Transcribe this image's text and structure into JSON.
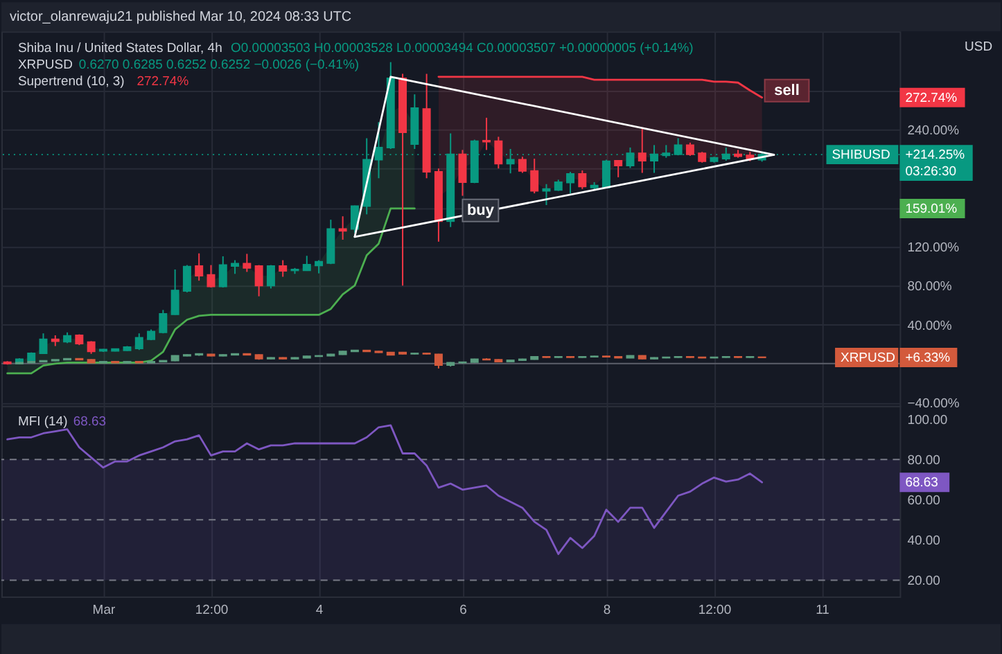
{
  "chart_data": [
    {
      "type": "candlestick",
      "title": "Shiba Inu / United States Dollar, 4h",
      "annotations": [
        "victor_olanrewaju21 published Mar 10, 2024 08:33 UTC",
        "O0.00003503 H0.00003528 L0.00003494 C0.00003507 +0.00000005 (+0.14%)",
        "0.6270 0.6285 0.6252 0.6252 −0.0026 (−0.41%)",
        "Supertrend (10, 3)",
        "272.74%",
        "USD",
        "272.74%",
        "+214.25%",
        "03:26:30",
        "159.01%",
        "+6.33%",
        {
          "text": "buy",
          "x": "2024-03-06T06:00",
          "y": 157
        },
        "sell"
      ],
      "x": [
        "2024-02-28T16:00",
        "2024-02-28T20:00",
        "2024-02-29T00:00",
        "2024-02-29T04:00",
        "2024-02-29T08:00",
        "2024-02-29T12:00",
        "2024-02-29T16:00",
        "2024-02-29T20:00",
        "2024-03-01T00:00",
        "2024-03-01T04:00",
        "2024-03-01T08:00",
        "2024-03-01T12:00",
        "2024-03-01T16:00",
        "2024-03-01T20:00",
        "2024-03-02T00:00",
        "2024-03-02T04:00",
        "2024-03-02T08:00",
        "2024-03-02T12:00",
        "2024-03-02T16:00",
        "2024-03-02T20:00",
        "2024-03-03T00:00",
        "2024-03-03T04:00",
        "2024-03-03T08:00",
        "2024-03-03T12:00",
        "2024-03-03T16:00",
        "2024-03-03T20:00",
        "2024-03-04T00:00",
        "2024-03-04T04:00",
        "2024-03-04T08:00",
        "2024-03-04T12:00",
        "2024-03-04T16:00",
        "2024-03-04T20:00",
        "2024-03-05T00:00",
        "2024-03-05T04:00",
        "2024-03-05T08:00",
        "2024-03-05T12:00",
        "2024-03-05T16:00",
        "2024-03-05T20:00",
        "2024-03-06T00:00",
        "2024-03-06T04:00",
        "2024-03-06T08:00",
        "2024-03-06T12:00",
        "2024-03-06T16:00",
        "2024-03-06T20:00",
        "2024-03-07T00:00",
        "2024-03-07T04:00",
        "2024-03-07T08:00",
        "2024-03-07T12:00",
        "2024-03-07T16:00",
        "2024-03-07T20:00",
        "2024-03-08T00:00",
        "2024-03-08T04:00",
        "2024-03-08T08:00",
        "2024-03-08T12:00",
        "2024-03-08T16:00",
        "2024-03-08T20:00",
        "2024-03-09T00:00",
        "2024-03-09T04:00",
        "2024-03-09T08:00",
        "2024-03-09T12:00",
        "2024-03-09T16:00",
        "2024-03-09T20:00",
        "2024-03-10T00:00",
        "2024-03-10T04:00"
      ],
      "series": [
        {
          "name": "SHIBUSD",
          "type": "candlestick",
          "ohlc": [
            [
              1.5,
              2.5,
              -1,
              0
            ],
            [
              0.5,
              5.5,
              0,
              4.5
            ],
            [
              3.5,
              11.5,
              3,
              10.5
            ],
            [
              10.5,
              31,
              10,
              25
            ],
            [
              25,
              29,
              18,
              23
            ],
            [
              22.5,
              32,
              21,
              28.5
            ],
            [
              29,
              30,
              19,
              20.5
            ],
            [
              22,
              23,
              10,
              12.5
            ],
            [
              13,
              15,
              12,
              14.5
            ],
            [
              13,
              15.5,
              12.5,
              15
            ],
            [
              13.5,
              18,
              13,
              17
            ],
            [
              15.5,
              31,
              14,
              26.5
            ],
            [
              25,
              35,
              24,
              33
            ],
            [
              32,
              55,
              31,
              51
            ],
            [
              50.5,
              96.5,
              50,
              75
            ],
            [
              74.5,
              101,
              73,
              99.5
            ],
            [
              100,
              113,
              85,
              90
            ],
            [
              91,
              101,
              78,
              79
            ],
            [
              79,
              110,
              78,
              101
            ],
            [
              100,
              106,
              92,
              102.5
            ],
            [
              102.5,
              112.5,
              94,
              98
            ],
            [
              100,
              101,
              69,
              80
            ],
            [
              80,
              101,
              77,
              100
            ],
            [
              100,
              106,
              89,
              95
            ],
            [
              95.5,
              98,
              92,
              96.5
            ],
            [
              95.5,
              110.5,
              95,
              101.5
            ],
            [
              100.5,
              106,
              92.5,
              104.5
            ],
            [
              103,
              147.5,
              102,
              138
            ],
            [
              138,
              151,
              127,
              136
            ],
            [
              138,
              162,
              134,
              161.5
            ],
            [
              161.5,
              231,
              153,
              209
            ],
            [
              209,
              247.5,
              190,
              221.5
            ],
            [
              221.5,
              309,
              220,
              292.5
            ],
            [
              292.5,
              297,
              80,
              237
            ],
            [
              225,
              276,
              220,
              262
            ],
            [
              261,
              297,
              190,
              196.5
            ],
            [
              196.5,
              200,
              125,
              146
            ],
            [
              146,
              236,
              140,
              214.5
            ],
            [
              214.5,
              219,
              172,
              186
            ],
            [
              186,
              229.5,
              185,
              228
            ],
            [
              228.5,
              252,
              219,
              227.5
            ],
            [
              228,
              232.5,
              200,
              205
            ],
            [
              205,
              220,
              195,
              209
            ],
            [
              209,
              212,
              195.5,
              197.5
            ],
            [
              197.5,
              210,
              174.5,
              177
            ],
            [
              177,
              184,
              162.5,
              179
            ],
            [
              178,
              188.5,
              177,
              186
            ],
            [
              185.5,
              196.5,
              174.5,
              194.5
            ],
            [
              194.5,
              198,
              179,
              181.5
            ],
            [
              180.5,
              186,
              178,
              182.5
            ],
            [
              180.5,
              209,
              180,
              207.5
            ],
            [
              208,
              208.5,
              191,
              203
            ],
            [
              203,
              221.5,
              200.5,
              215.5
            ],
            [
              215.5,
              240.5,
              195.5,
              208
            ],
            [
              208,
              224,
              195.5,
              214.5
            ],
            [
              213.5,
              224,
              211,
              215.5
            ],
            [
              214.5,
              231,
              213.5,
              224
            ],
            [
              224,
              226.5,
              213,
              214.5
            ],
            [
              215.5,
              217,
              206,
              207.5
            ],
            [
              207.5,
              212,
              206,
              211
            ],
            [
              210,
              221.5,
              208,
              214.5
            ],
            [
              214.5,
              219,
              211,
              212.5
            ],
            [
              213.5,
              217,
              207.5,
              210
            ],
            [
              209,
              216,
              207,
              214.25
            ]
          ],
          "colors": [
            "#f23645",
            "#089981",
            "#089981",
            "#089981",
            "#f23645",
            "#089981",
            "#f23645",
            "#f23645",
            "#089981",
            "#089981",
            "#089981",
            "#089981",
            "#089981",
            "#089981",
            "#089981",
            "#089981",
            "#f23645",
            "#f23645",
            "#089981",
            "#089981",
            "#f23645",
            "#f23645",
            "#089981",
            "#f23645",
            "#089981",
            "#089981",
            "#089981",
            "#089981",
            "#f23645",
            "#089981",
            "#089981",
            "#089981",
            "#089981",
            "#f23645",
            "#089981",
            "#f23645",
            "#f23645",
            "#089981",
            "#f23645",
            "#089981",
            "#f23645",
            "#f23645",
            "#089981",
            "#f23645",
            "#f23645",
            "#089981",
            "#089981",
            "#089981",
            "#f23645",
            "#089981",
            "#089981",
            "#f23645",
            "#089981",
            "#f23645",
            "#089981",
            "#089981",
            "#089981",
            "#f23645",
            "#f23645",
            "#089981",
            "#089981",
            "#f23645",
            "#f23645",
            "#089981"
          ]
        },
        {
          "name": "XRPUSD",
          "type": "candlestick",
          "ohlc": [
            null,
            [
              0,
              1.5,
              -0.5,
              1
            ],
            [
              1,
              2.5,
              0.5,
              2
            ],
            [
              2,
              3,
              1.5,
              3
            ],
            [
              3,
              4,
              2.5,
              4
            ],
            [
              4,
              5,
              3.5,
              5
            ],
            [
              5,
              5.5,
              3.5,
              4
            ],
            [
              4,
              4.5,
              0.5,
              1
            ],
            [
              1,
              2,
              0.5,
              2
            ],
            [
              2,
              2.5,
              0.5,
              1
            ],
            [
              1,
              2.5,
              0.5,
              2
            ],
            [
              2,
              2.5,
              1,
              1
            ],
            [
              1,
              2.5,
              0.5,
              2
            ],
            [
              2,
              3.5,
              1.5,
              3
            ],
            [
              3,
              8.5,
              2.5,
              8
            ],
            [
              8,
              9.5,
              7.5,
              9
            ],
            [
              9,
              10,
              8,
              10
            ],
            [
              9.5,
              10,
              7.5,
              8
            ],
            [
              8,
              9.5,
              7.5,
              9
            ],
            [
              9,
              10,
              8.5,
              10
            ],
            [
              10,
              10.5,
              8.5,
              9
            ],
            [
              9,
              9.5,
              4,
              5
            ],
            [
              5,
              6.5,
              4.5,
              6
            ],
            [
              6,
              6.5,
              4.5,
              5
            ],
            [
              5,
              6.5,
              4.5,
              6
            ],
            [
              6,
              8,
              5.5,
              7.5
            ],
            [
              7.5,
              8.5,
              7,
              8
            ],
            [
              8,
              10,
              7.5,
              9.5
            ],
            [
              9.5,
              13,
              9,
              12.5
            ],
            [
              12.5,
              14,
              12,
              13.5
            ],
            [
              13.5,
              14,
              12,
              12.5
            ],
            [
              12.5,
              13,
              11,
              11.5
            ],
            [
              11.5,
              12,
              8.5,
              9
            ],
            [
              11.5,
              12,
              9.5,
              10
            ],
            [
              10,
              11,
              9.5,
              10.5
            ],
            [
              10.5,
              11,
              9.5,
              10
            ],
            [
              9.5,
              10,
              -5,
              -1.5
            ],
            [
              -1.5,
              1.5,
              -3,
              1
            ],
            [
              1,
              2,
              0,
              1.5
            ],
            [
              1.5,
              5,
              1,
              4.5
            ],
            [
              4.5,
              5.5,
              3.5,
              4
            ],
            [
              4,
              4.5,
              1.5,
              2
            ],
            [
              2,
              4,
              1.5,
              3.5
            ],
            [
              3.5,
              5,
              3,
              4.5
            ],
            [
              4.5,
              7.5,
              4,
              7
            ],
            [
              7,
              7.5,
              6,
              6.5
            ],
            [
              6.5,
              7.5,
              6,
              7
            ],
            [
              7,
              7.5,
              6,
              6.5
            ],
            [
              6.5,
              7.5,
              6,
              7
            ],
            [
              7,
              8,
              6.5,
              7.5
            ],
            [
              7.5,
              8,
              6.5,
              7
            ],
            [
              7,
              7.5,
              5.5,
              6
            ],
            [
              6,
              8.5,
              5.5,
              8
            ],
            [
              8,
              8.5,
              4.5,
              5
            ],
            [
              5,
              6.5,
              4.5,
              6
            ],
            [
              6,
              7,
              5.5,
              6.5
            ],
            [
              6.5,
              7.5,
              6,
              7
            ],
            [
              7,
              7.5,
              6,
              6.5
            ],
            [
              6.5,
              7,
              5.5,
              6
            ],
            [
              6,
              7,
              5.5,
              6.5
            ],
            [
              6.5,
              7.5,
              6,
              7
            ],
            [
              7,
              7.5,
              6,
              6.5
            ],
            [
              6.5,
              7.5,
              6,
              7
            ],
            [
              6.6,
              6.9,
              6.33,
              6.33
            ]
          ],
          "colors": [
            null,
            "#5b9c7f",
            "#5b9c7f",
            "#5b9c7f",
            "#5b9c7f",
            "#5b9c7f",
            "#d35a3c",
            "#d35a3c",
            "#5b9c7f",
            "#d35a3c",
            "#5b9c7f",
            "#d35a3c",
            "#5b9c7f",
            "#5b9c7f",
            "#5b9c7f",
            "#5b9c7f",
            "#5b9c7f",
            "#d35a3c",
            "#5b9c7f",
            "#5b9c7f",
            "#d35a3c",
            "#d35a3c",
            "#5b9c7f",
            "#d35a3c",
            "#5b9c7f",
            "#5b9c7f",
            "#5b9c7f",
            "#5b9c7f",
            "#5b9c7f",
            "#5b9c7f",
            "#d35a3c",
            "#d35a3c",
            "#d35a3c",
            "#d35a3c",
            "#5b9c7f",
            "#d35a3c",
            "#d35a3c",
            "#5b9c7f",
            "#5b9c7f",
            "#5b9c7f",
            "#d35a3c",
            "#d35a3c",
            "#5b9c7f",
            "#5b9c7f",
            "#5b9c7f",
            "#d35a3c",
            "#5b9c7f",
            "#d35a3c",
            "#5b9c7f",
            "#5b9c7f",
            "#d35a3c",
            "#d35a3c",
            "#5b9c7f",
            "#d35a3c",
            "#5b9c7f",
            "#5b9c7f",
            "#5b9c7f",
            "#d35a3c",
            "#d35a3c",
            "#5b9c7f",
            "#5b9c7f",
            "#d35a3c",
            "#5b9c7f",
            "#d35a3c"
          ]
        },
        {
          "type": "line",
          "color": "#4caf50",
          "values": [
            -10,
            -10,
            -10,
            -2,
            0,
            1,
            1,
            1,
            1,
            1,
            1,
            1,
            3,
            12,
            35,
            45,
            49,
            50,
            50,
            50,
            50,
            50,
            50,
            50,
            50,
            50,
            50,
            56,
            71,
            80,
            111,
            123,
            159.01,
            159.01,
            159.01,
            null,
            null,
            null,
            null,
            null,
            null,
            null,
            null,
            null,
            null,
            null,
            null,
            null,
            null,
            null,
            null,
            null,
            null,
            null,
            null,
            null,
            null,
            null,
            null,
            null,
            null,
            null,
            null,
            null
          ],
          "lower": [
            -10,
            -10,
            -10,
            -2,
            0,
            1,
            1,
            1,
            1,
            1,
            1,
            1,
            3,
            12,
            35,
            45,
            49,
            50,
            50,
            50,
            50,
            50,
            50,
            50,
            50,
            50,
            50,
            56,
            71,
            80,
            111,
            123,
            159.01,
            159.01,
            159.01,
            null,
            null,
            null,
            null,
            null,
            null,
            null,
            null,
            null,
            null,
            null,
            null,
            null,
            null,
            null,
            null,
            null,
            null,
            null,
            null,
            null,
            null,
            null,
            null,
            null,
            null,
            null,
            null,
            null
          ],
          "upper": [
            1,
            3,
            7,
            18,
            24,
            26,
            25,
            17,
            14,
            14,
            15,
            21,
            29,
            42,
            63,
            87,
            95,
            85,
            90,
            101,
            100,
            90,
            90,
            98,
            96,
            99,
            103,
            121,
            137,
            150,
            185,
            215,
            257,
            265,
            244,
            null,
            null,
            null,
            null,
            null,
            null,
            null,
            null,
            null,
            null,
            null,
            null,
            null,
            null,
            null,
            null,
            null,
            null,
            null,
            null,
            null,
            null,
            null,
            null,
            null,
            null,
            null,
            null,
            null
          ]
        },
        {
          "type": "line",
          "color": "#f23645",
          "values": [
            null,
            null,
            null,
            null,
            null,
            null,
            null,
            null,
            null,
            null,
            null,
            null,
            null,
            null,
            null,
            null,
            null,
            null,
            null,
            null,
            null,
            null,
            null,
            null,
            null,
            null,
            null,
            null,
            null,
            null,
            null,
            null,
            null,
            null,
            null,
            null,
            294,
            294,
            294,
            294,
            294,
            294,
            294,
            294,
            294,
            294,
            294,
            294,
            294,
            291,
            291,
            291,
            291,
            291,
            291,
            291,
            291,
            291,
            291,
            289,
            289,
            288,
            280,
            272.74
          ],
          "lower": [
            null,
            null,
            null,
            null,
            null,
            null,
            null,
            null,
            null,
            null,
            null,
            null,
            null,
            null,
            null,
            null,
            null,
            null,
            null,
            null,
            null,
            null,
            null,
            null,
            null,
            null,
            null,
            null,
            null,
            null,
            null,
            null,
            null,
            null,
            null,
            null,
            171,
            180,
            200,
            207,
            228,
            217,
            207,
            203,
            187,
            178,
            182,
            190,
            188,
            182,
            194,
            206,
            209,
            212,
            211,
            215,
            219,
            219,
            212,
            209,
            212,
            214,
            212,
            212
          ],
          "upper": [
            null,
            null,
            null,
            null,
            null,
            null,
            null,
            null,
            null,
            null,
            null,
            null,
            null,
            null,
            null,
            null,
            null,
            null,
            null,
            null,
            null,
            null,
            null,
            null,
            null,
            null,
            null,
            null,
            null,
            null,
            null,
            null,
            null,
            null,
            null,
            null,
            294,
            294,
            294,
            294,
            294,
            294,
            294,
            294,
            294,
            294,
            294,
            294,
            294,
            291,
            291,
            291,
            291,
            291,
            291,
            291,
            291,
            291,
            291,
            289,
            289,
            288,
            280,
            272.74
          ]
        },
        {
          "type": "line",
          "color": "#ffffff",
          "x": [
            "2024-03-04T12:00",
            "2024-03-05T00:00",
            "2024-03-10T08:00"
          ],
          "values": [
            130,
            294,
            214
          ]
        },
        {
          "type": "line",
          "color": "#ffffff",
          "x": [
            "2024-03-04T12:00",
            "2024-03-10T08:00"
          ],
          "values": [
            130,
            214
          ]
        }
      ],
      "xlim": [
        "2024-02-28T14:00",
        "2024-03-12T02:00"
      ],
      "xticks": [
        {
          "value": "2024-03-01T00:00",
          "label": null
        },
        {
          "value": "2024-03-02T12:00",
          "label": null
        },
        {
          "value": "2024-03-04T00:00",
          "label": null
        },
        {
          "value": "2024-03-06T00:00",
          "label": null
        },
        {
          "value": "2024-03-08T00:00",
          "label": null
        },
        {
          "value": "2024-03-09T12:00",
          "label": null
        },
        {
          "value": "2024-03-11T00:00",
          "label": null
        }
      ],
      "ylim": [
        -43.2,
        340.6
      ],
      "yticks": [
        {
          "value": -40,
          "label": "−40.00%"
        },
        {
          "value": 0,
          "label": null
        },
        {
          "value": 40,
          "label": "40.00%"
        },
        {
          "value": 80,
          "label": "80.00%"
        },
        {
          "value": 120,
          "label": "120.00%"
        },
        {
          "value": 160,
          "label": null
        },
        {
          "value": 200,
          "label": null
        },
        {
          "value": 240,
          "label": "240.00%"
        },
        {
          "value": 280,
          "label": null
        }
      ],
      "ref_lines": [
        {
          "axis": "y",
          "value": 214.25,
          "color": "#089981",
          "line_style": "dotted"
        },
        {
          "axis": "y",
          "value": 0,
          "color": "#5d606b"
        }
      ],
      "grid": true,
      "tick_labels": "y"
    },
    {
      "type": "line",
      "title": "MFI (14)",
      "annotations": [
        "68.63",
        "68.63"
      ],
      "x": [
        "2024-02-28T16:00",
        "2024-02-28T20:00",
        "2024-02-29T00:00",
        "2024-02-29T04:00",
        "2024-02-29T08:00",
        "2024-02-29T12:00",
        "2024-02-29T16:00",
        "2024-02-29T20:00",
        "2024-03-01T00:00",
        "2024-03-01T04:00",
        "2024-03-01T08:00",
        "2024-03-01T12:00",
        "2024-03-01T16:00",
        "2024-03-01T20:00",
        "2024-03-02T00:00",
        "2024-03-02T04:00",
        "2024-03-02T08:00",
        "2024-03-02T12:00",
        "2024-03-02T16:00",
        "2024-03-02T20:00",
        "2024-03-03T00:00",
        "2024-03-03T04:00",
        "2024-03-03T08:00",
        "2024-03-03T12:00",
        "2024-03-03T16:00",
        "2024-03-03T20:00",
        "2024-03-04T00:00",
        "2024-03-04T04:00",
        "2024-03-04T08:00",
        "2024-03-04T12:00",
        "2024-03-04T16:00",
        "2024-03-04T20:00",
        "2024-03-05T00:00",
        "2024-03-05T04:00",
        "2024-03-05T08:00",
        "2024-03-05T12:00",
        "2024-03-05T16:00",
        "2024-03-05T20:00",
        "2024-03-06T00:00",
        "2024-03-06T04:00",
        "2024-03-06T08:00",
        "2024-03-06T12:00",
        "2024-03-06T16:00",
        "2024-03-06T20:00",
        "2024-03-07T00:00",
        "2024-03-07T04:00",
        "2024-03-07T08:00",
        "2024-03-07T12:00",
        "2024-03-07T16:00",
        "2024-03-07T20:00",
        "2024-03-08T00:00",
        "2024-03-08T04:00",
        "2024-03-08T08:00",
        "2024-03-08T12:00",
        "2024-03-08T16:00",
        "2024-03-08T20:00",
        "2024-03-09T00:00",
        "2024-03-09T04:00",
        "2024-03-09T08:00",
        "2024-03-09T12:00",
        "2024-03-09T16:00",
        "2024-03-09T20:00",
        "2024-03-10T00:00",
        "2024-03-10T04:00"
      ],
      "series": [
        {
          "color": "#7e57c2",
          "values": [
            90,
            91,
            91,
            93,
            94,
            95,
            86,
            81,
            76,
            79,
            79,
            82,
            84,
            86,
            89,
            90,
            92,
            82,
            84,
            84,
            88,
            85,
            87,
            87,
            88,
            88,
            88,
            88,
            88,
            88,
            91,
            96,
            97,
            83,
            83,
            77,
            66,
            68,
            65,
            66,
            67,
            62,
            59,
            56,
            49,
            45,
            33,
            41,
            36,
            42,
            55,
            49,
            56,
            56,
            46,
            54,
            62,
            64,
            68,
            71,
            69,
            70,
            73,
            68.63
          ]
        }
      ],
      "xlim": [
        "2024-02-28T14:00",
        "2024-03-12T02:00"
      ],
      "xticks": [
        {
          "value": "2024-03-01T00:00",
          "label": "Mar"
        },
        {
          "value": "2024-03-02T12:00",
          "label": "12:00"
        },
        {
          "value": "2024-03-04T00:00",
          "label": "4"
        },
        {
          "value": "2024-03-06T00:00",
          "label": "6"
        },
        {
          "value": "2024-03-08T00:00",
          "label": "8"
        },
        {
          "value": "2024-03-09T12:00",
          "label": "12:00"
        },
        {
          "value": "2024-03-11T00:00",
          "label": "11"
        }
      ],
      "ylim": [
        11.9,
        106.7
      ],
      "yticks": [
        {
          "value": 20,
          "label": "20.00"
        },
        {
          "value": 40,
          "label": "40.00"
        },
        {
          "value": 60,
          "label": "60.00"
        },
        {
          "value": 80,
          "label": "80.00"
        },
        {
          "value": 100,
          "label": "100.00"
        }
      ],
      "ref_lines": [
        {
          "axis": "y",
          "value": 80,
          "color": "#787b86",
          "line_style": "dashed"
        },
        {
          "axis": "y",
          "value": 50,
          "color": "#787b86",
          "line_style": "dashed"
        },
        {
          "axis": "y",
          "value": 20,
          "color": "#787b86",
          "line_style": "dashed"
        }
      ],
      "bands": [
        {
          "axis": "y",
          "from": 20,
          "to": 80,
          "color": "#7e57c2"
        }
      ],
      "grid": "x"
    }
  ]
}
